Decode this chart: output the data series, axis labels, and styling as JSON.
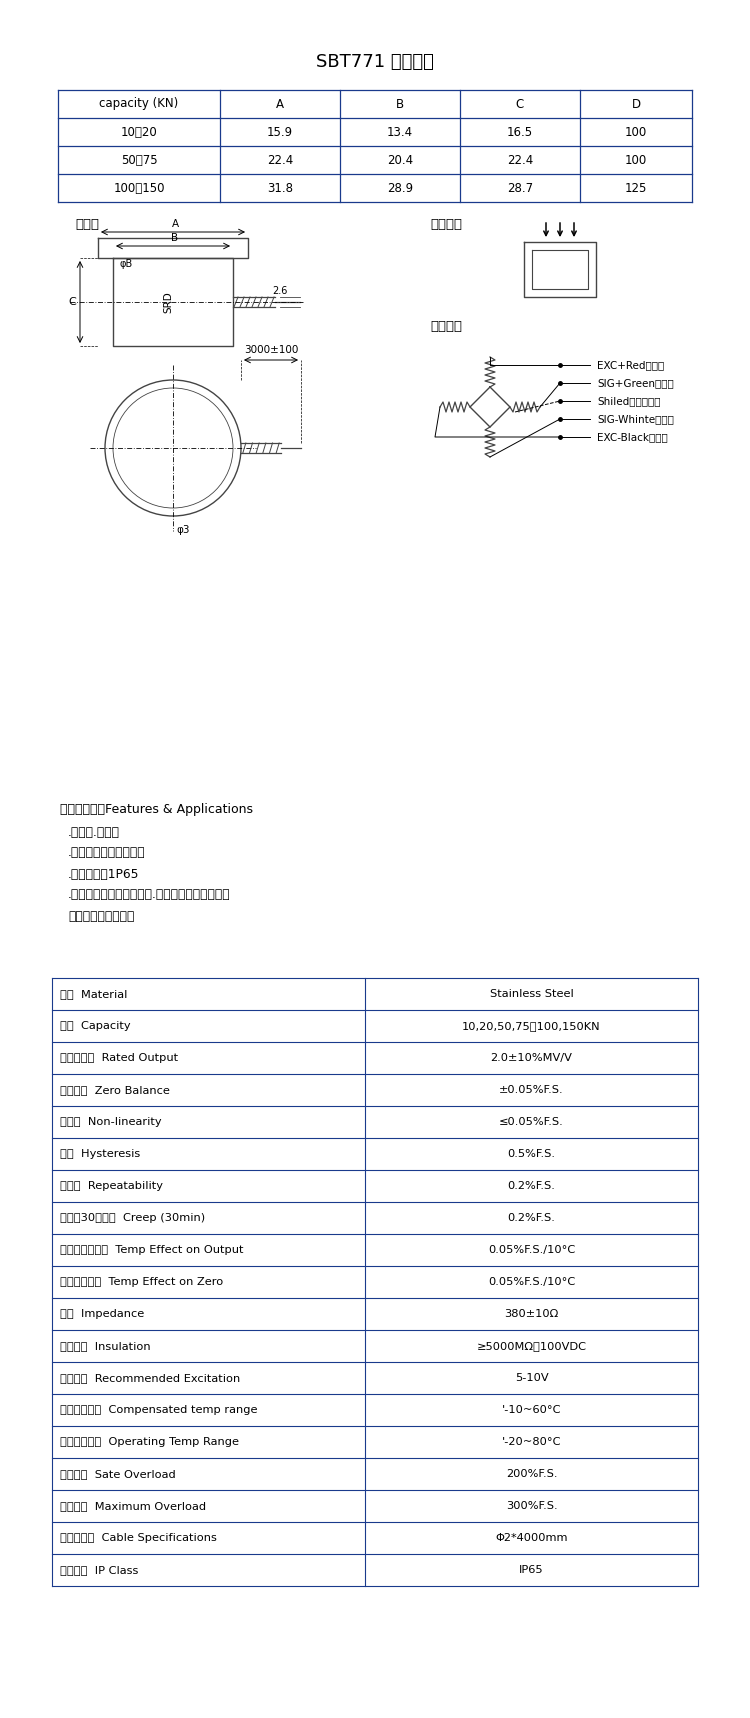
{
  "title": "SBT771 产品参数",
  "bg_color": "#ffffff",
  "border_color": "#1a3a8c",
  "table1_headers": [
    "capacity (KN)",
    "A",
    "B",
    "C",
    "D"
  ],
  "table1_rows": [
    [
      "10，20",
      "15.9",
      "13.4",
      "16.5",
      "100"
    ],
    [
      "50，75",
      "22.4",
      "20.4",
      "22.4",
      "100"
    ],
    [
      "100，150",
      "31.8",
      "28.9",
      "28.7",
      "125"
    ]
  ],
  "dim_label_left": "尺寸图",
  "dim_label_right": "受力方向",
  "wire_label": "接线定义",
  "wire_defs": [
    "EXC+Red（红）",
    "SIG+Green（绿）",
    "Shiled（屏蔽线）",
    "SIG-Whinte（白）",
    "EXC-Black（黑）"
  ],
  "features_title": "特点与用途：Features & Applications",
  "features": [
    ".小外形.大量程",
    ".传感器专用不锈钙材料",
    ".防护等级：1P65",
    ".适用于各种小空间的测力.广泛应用于工业、研发",
    "等领域的测量和控制"
  ],
  "table2_rows": [
    [
      "材质  Material",
      "Stainless Steel"
    ],
    [
      "量程  Capacity",
      "10,20,50,75，100,150KN"
    ],
    [
      "输出灵敏度  Rated Output",
      "2.0±10%MV/V"
    ],
    [
      "零点输出  Zero Balance",
      "±0.05%F.S."
    ],
    [
      "非线性  Non-linearity",
      "≤0.05%F.S."
    ],
    [
      "滞后  Hysteresis",
      "0.5%F.S."
    ],
    [
      "重复性  Repeatability",
      "0.2%F.S."
    ],
    [
      "蚀变（30分钟）  Creep (30min)",
      "0.2%F.S."
    ],
    [
      "温度灵敏度漂移  Temp Effect on Output",
      "0.05%F.S./10°C"
    ],
    [
      "零点温度漂移  Temp Effect on Zero",
      "0.05%F.S./10°C"
    ],
    [
      "阻抗  Impedance",
      "380±10Ω"
    ],
    [
      "绝缘电阰  Insulation",
      "≥5000MΩ，100VDC"
    ],
    [
      "使用电压  Recommended Excitation",
      "5-10V"
    ],
    [
      "温度补偿范围  Compensated temp range",
      "'-10~60°C"
    ],
    [
      "工作温度范围  Operating Temp Range",
      "'-20~80°C"
    ],
    [
      "安全过载  Sate Overload",
      "200%F.S."
    ],
    [
      "极限过载  Maximum Overload",
      "300%F.S."
    ],
    [
      "电缆线规格  Cable Specifications",
      "Φ2*4000mm"
    ],
    [
      "防护等级  IP Class",
      "IP65"
    ]
  ],
  "fig_width": 7.5,
  "fig_height": 17.18,
  "dpi": 100
}
